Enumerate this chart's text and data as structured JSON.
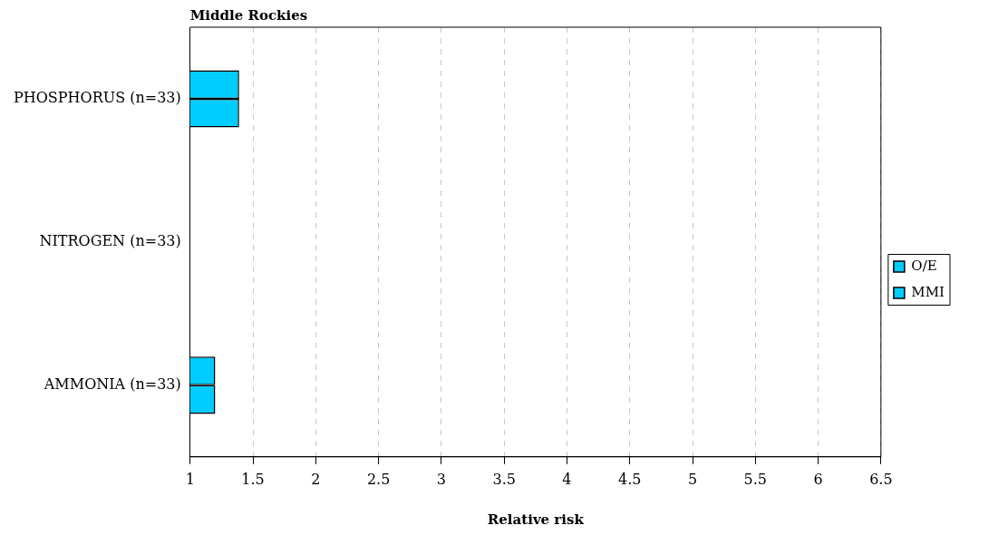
{
  "chart_data": {
    "type": "bar",
    "orientation": "horizontal",
    "title": "Middle Rockies",
    "xlabel": "Relative risk",
    "categories": [
      "PHOSPHORUS (n=33)",
      "NITROGEN (n=33)",
      "AMMONIA (n=33)"
    ],
    "series": [
      {
        "name": "O/E",
        "color": "#00ccff",
        "values": [
          1.39,
          null,
          1.2
        ]
      },
      {
        "name": "MMI",
        "color": "#00ccff",
        "values": [
          1.39,
          null,
          1.2
        ]
      }
    ],
    "xlim": [
      1,
      6.5
    ],
    "xticks": [
      1,
      1.5,
      2,
      2.5,
      3,
      3.5,
      4,
      4.5,
      5,
      5.5,
      6,
      6.5
    ],
    "grid": "x",
    "legend": "right"
  }
}
